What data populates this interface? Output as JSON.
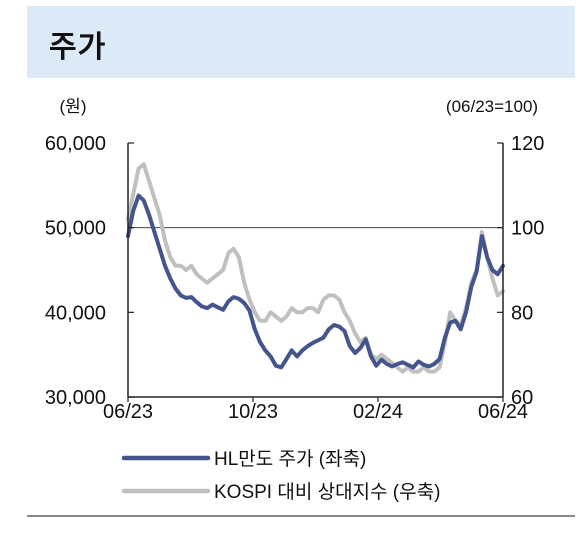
{
  "header": {
    "title": "주가"
  },
  "chart_data": {
    "type": "line",
    "left_unit": "(원)",
    "right_unit": "(06/23=100)",
    "left_ylim": [
      30000,
      60000
    ],
    "right_ylim": [
      60,
      120
    ],
    "left_ticks": [
      "60,000",
      "50,000",
      "40,000",
      "30,000"
    ],
    "right_ticks": [
      "120",
      "100",
      "80",
      "60"
    ],
    "x_ticks": [
      "06/23",
      "10/23",
      "02/24",
      "06/24"
    ],
    "reference_line": 100,
    "series": [
      {
        "name": "HL만도 주가 (좌축)",
        "axis": "left",
        "color": "#44548c",
        "values": [
          49000,
          52000,
          53800,
          53200,
          51500,
          49500,
          47500,
          45500,
          44000,
          42800,
          42000,
          41700,
          41800,
          41200,
          40700,
          40500,
          40900,
          40600,
          40300,
          41300,
          41800,
          41600,
          41100,
          40200,
          38000,
          36500,
          35500,
          34800,
          33700,
          33500,
          34500,
          35500,
          34800,
          35500,
          36000,
          36400,
          36700,
          37000,
          38000,
          38500,
          38300,
          37800,
          36000,
          35200,
          35800,
          36800,
          34800,
          33700,
          34400,
          33900,
          33600,
          33900,
          34100,
          33800,
          33500,
          34200,
          33800,
          33600,
          33900,
          34500,
          37000,
          38800,
          39000,
          38000,
          40000,
          43000,
          44800,
          49000,
          46500,
          45000,
          44500,
          45500
        ]
      },
      {
        "name": "KOSPI 대비 상대지수 (우축)",
        "axis": "right",
        "color": "#c0c0c0",
        "values": [
          102,
          108,
          114,
          115,
          111,
          107,
          103,
          97,
          93,
          91,
          91,
          90,
          91,
          89,
          88,
          87,
          88,
          89,
          90,
          94,
          95,
          93,
          87,
          83,
          80,
          78,
          78,
          80,
          79,
          78,
          79,
          81,
          80,
          80,
          81,
          81,
          80,
          83,
          84,
          84,
          83,
          80,
          78,
          75,
          73,
          74,
          70,
          69,
          70,
          69,
          68,
          67,
          66,
          67,
          66,
          66,
          67,
          66,
          66,
          67,
          73,
          80,
          78,
          77,
          81,
          87,
          90,
          99,
          93,
          88,
          84,
          85
        ]
      }
    ]
  }
}
